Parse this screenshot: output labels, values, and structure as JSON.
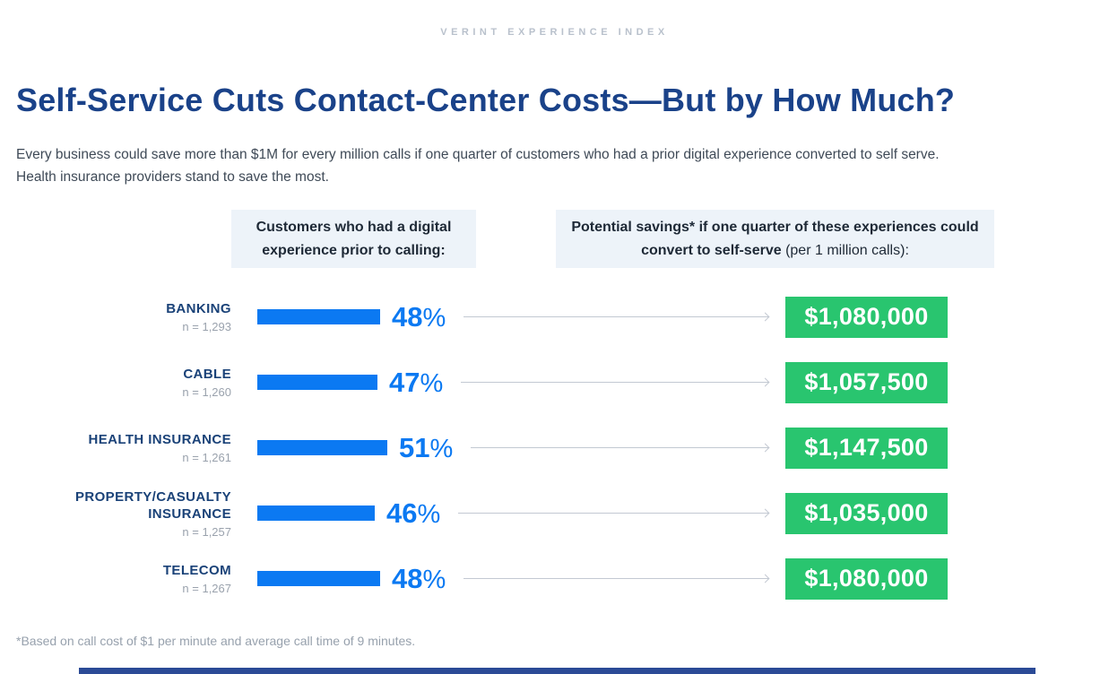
{
  "page": {
    "kicker": "VERINT EXPERIENCE INDEX",
    "title": "Self-Service Cuts Contact-Center Costs—But by How Much?",
    "subtitle_line1": "Every business could save more than $1M for every million calls if one quarter of customers who had a prior digital experience converted to self serve.",
    "subtitle_line2": "Health insurance providers stand to save the most.",
    "footnote": "*Based on call cost of $1 per minute and average call time of 9 minutes."
  },
  "columns": {
    "left_header": "Customers who had a digital experience prior to calling:",
    "right_header_bold": "Potential savings* if one quarter of these experiences could convert to self-serve",
    "right_header_normal": " (per 1 million calls):"
  },
  "labels": {
    "percent_sign": "%"
  },
  "rows": [
    {
      "label": "BANKING",
      "sample": "n = 1,293",
      "pct": 48,
      "savings": "$1,080,000"
    },
    {
      "label": "CABLE",
      "sample": "n = 1,260",
      "pct": 47,
      "savings": "$1,057,500"
    },
    {
      "label": "HEALTH INSURANCE",
      "sample": "n = 1,261",
      "pct": 51,
      "savings": "$1,147,500"
    },
    {
      "label": "PROPERTY/CASUALTY INSURANCE",
      "sample": "n = 1,257",
      "pct": 46,
      "savings": "$1,035,000"
    },
    {
      "label": "TELECOM",
      "sample": "n = 1,267",
      "pct": 48,
      "savings": "$1,080,000"
    }
  ],
  "colors": {
    "title_blue": "#1a4289",
    "bar_blue": "#0b79f2",
    "savings_green": "#29c56f",
    "header_bg": "#edf3f9",
    "arrow_gray": "#c3c9d2",
    "kicker_gray": "#b9c1cc",
    "footer_bar_blue": "#2b4a96"
  },
  "chart_data": {
    "type": "bar",
    "title": "Self-Service Cuts Contact-Center Costs—But by How Much?",
    "subtitle": "Every business could save more than $1M for every million calls if one quarter of customers who had a prior digital experience converted to self serve. Health insurance providers stand to save the most.",
    "categories": [
      "BANKING",
      "CABLE",
      "HEALTH INSURANCE",
      "PROPERTY/CASUALTY INSURANCE",
      "TELECOM"
    ],
    "sample_sizes": [
      1293,
      1260,
      1261,
      1257,
      1267
    ],
    "series": [
      {
        "name": "Customers who had a digital experience prior to calling (%)",
        "values": [
          48,
          47,
          51,
          46,
          48
        ]
      },
      {
        "name": "Potential savings* if one quarter of these experiences could convert to self-serve (per 1 million calls) ($)",
        "values": [
          1080000,
          1057500,
          1147500,
          1035000,
          1080000
        ]
      }
    ],
    "annotations": [
      "*Based on call cost of $1 per minute and average call time of 9 minutes."
    ],
    "orientation": "horizontal",
    "grid": false,
    "legend_position": "column-headers-top",
    "xlabel": "",
    "ylabel": ""
  }
}
